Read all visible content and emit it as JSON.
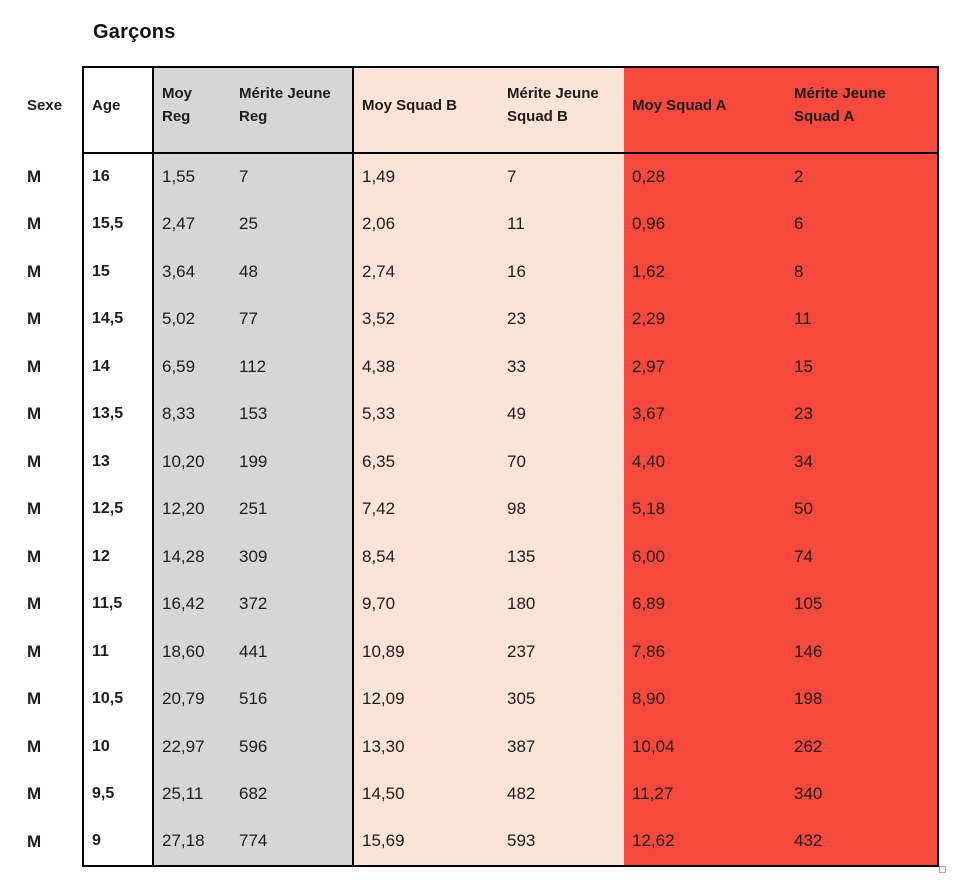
{
  "title": "Garçons",
  "table": {
    "headers": {
      "sexe": "Sexe",
      "age": "Age",
      "moy_reg": "Moy\nReg",
      "merite_reg": "Mérite Jeune\nReg",
      "moy_squad_b": "Moy Squad B",
      "merite_squad_b": "Mérite Jeune\nSquad B",
      "moy_squad_a": "Moy Squad A",
      "merite_squad_a": "Mérite Jeune\nSquad A"
    },
    "rows": [
      {
        "sexe": "M",
        "age": "16",
        "moy_reg": "1,55",
        "merite_reg": "7",
        "moy_squad_b": "1,49",
        "merite_squad_b": "7",
        "moy_squad_a": "0,28",
        "merite_squad_a": "2"
      },
      {
        "sexe": "M",
        "age": "15,5",
        "moy_reg": "2,47",
        "merite_reg": "25",
        "moy_squad_b": "2,06",
        "merite_squad_b": "11",
        "moy_squad_a": "0,96",
        "merite_squad_a": "6"
      },
      {
        "sexe": "M",
        "age": "15",
        "moy_reg": "3,64",
        "merite_reg": "48",
        "moy_squad_b": "2,74",
        "merite_squad_b": "16",
        "moy_squad_a": "1,62",
        "merite_squad_a": "8"
      },
      {
        "sexe": "M",
        "age": "14,5",
        "moy_reg": "5,02",
        "merite_reg": "77",
        "moy_squad_b": "3,52",
        "merite_squad_b": "23",
        "moy_squad_a": "2,29",
        "merite_squad_a": "11"
      },
      {
        "sexe": "M",
        "age": "14",
        "moy_reg": "6,59",
        "merite_reg": "112",
        "moy_squad_b": "4,38",
        "merite_squad_b": "33",
        "moy_squad_a": "2,97",
        "merite_squad_a": "15"
      },
      {
        "sexe": "M",
        "age": "13,5",
        "moy_reg": "8,33",
        "merite_reg": "153",
        "moy_squad_b": "5,33",
        "merite_squad_b": "49",
        "moy_squad_a": "3,67",
        "merite_squad_a": "23"
      },
      {
        "sexe": "M",
        "age": "13",
        "moy_reg": "10,20",
        "merite_reg": "199",
        "moy_squad_b": "6,35",
        "merite_squad_b": "70",
        "moy_squad_a": "4,40",
        "merite_squad_a": "34"
      },
      {
        "sexe": "M",
        "age": "12,5",
        "moy_reg": "12,20",
        "merite_reg": "251",
        "moy_squad_b": "7,42",
        "merite_squad_b": "98",
        "moy_squad_a": "5,18",
        "merite_squad_a": "50"
      },
      {
        "sexe": "M",
        "age": "12",
        "moy_reg": "14,28",
        "merite_reg": "309",
        "moy_squad_b": "8,54",
        "merite_squad_b": "135",
        "moy_squad_a": "6,00",
        "merite_squad_a": "74"
      },
      {
        "sexe": "M",
        "age": "11,5",
        "moy_reg": "16,42",
        "merite_reg": "372",
        "moy_squad_b": "9,70",
        "merite_squad_b": "180",
        "moy_squad_a": "6,89",
        "merite_squad_a": "105"
      },
      {
        "sexe": "M",
        "age": "11",
        "moy_reg": "18,60",
        "merite_reg": "441",
        "moy_squad_b": "10,89",
        "merite_squad_b": "237",
        "moy_squad_a": "7,86",
        "merite_squad_a": "146"
      },
      {
        "sexe": "M",
        "age": "10,5",
        "moy_reg": "20,79",
        "merite_reg": "516",
        "moy_squad_b": "12,09",
        "merite_squad_b": "305",
        "moy_squad_a": "8,90",
        "merite_squad_a": "198"
      },
      {
        "sexe": "M",
        "age": "10",
        "moy_reg": "22,97",
        "merite_reg": "596",
        "moy_squad_b": "13,30",
        "merite_squad_b": "387",
        "moy_squad_a": "10,04",
        "merite_squad_a": "262"
      },
      {
        "sexe": "M",
        "age": "9,5",
        "moy_reg": "25,11",
        "merite_reg": "682",
        "moy_squad_b": "14,50",
        "merite_squad_b": "482",
        "moy_squad_a": "11,27",
        "merite_squad_a": "340"
      },
      {
        "sexe": "M",
        "age": "9",
        "moy_reg": "27,18",
        "merite_reg": "774",
        "moy_squad_b": "15,69",
        "merite_squad_b": "593",
        "moy_squad_a": "12,62",
        "merite_squad_a": "432"
      }
    ]
  },
  "colors": {
    "reg_bg": "#d6d6d6",
    "squad_b_bg": "#fbe3d7",
    "squad_a_bg": "#f5493d",
    "border": "#000000",
    "text": "#1d1d1d"
  }
}
